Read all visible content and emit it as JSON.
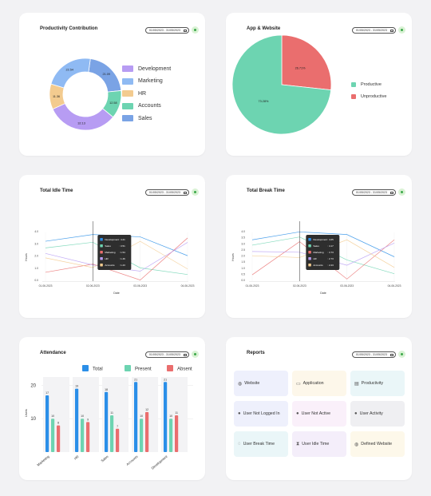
{
  "productivity": {
    "title": "Productivity Contribution",
    "date_range": "01/05/2023 - 31/05/2023",
    "legend": [
      {
        "label": "Development",
        "color": "#b79cf3"
      },
      {
        "label": "Marketing",
        "color": "#8fbaf3"
      },
      {
        "label": "HR",
        "color": "#f3cb8f"
      },
      {
        "label": "Accounts",
        "color": "#6dd4b1"
      },
      {
        "label": "Sales",
        "color": "#7aa3e5"
      }
    ]
  },
  "app_website": {
    "title": "App & Website",
    "date_range": "01/05/2023 - 31/05/2023",
    "legend": [
      {
        "label": "Productive",
        "color": "#6dd4b1"
      },
      {
        "label": "Unproductive",
        "color": "#ea6e6e"
      }
    ]
  },
  "idle": {
    "title": "Total Idle Time",
    "date_range": "01/05/2023 - 31/05/2023",
    "tooltip": [
      {
        "label": "Development",
        "value": ": 4.21",
        "color": "#2b8fe8"
      },
      {
        "label": "Sales",
        "value": ": 3.51",
        "color": "#6dd4b1"
      },
      {
        "label": "Marketing",
        "value": ": 1.54",
        "color": "#ea6e6e"
      },
      {
        "label": "HR",
        "value": ": 1.46",
        "color": "#b79cf3"
      },
      {
        "label": "Accounts",
        "value": ": 1.23",
        "color": "#f3cb8f"
      }
    ]
  },
  "break": {
    "title": "Total Break Time",
    "date_range": "01/05/2023 - 31/05/2023",
    "tooltip": [
      {
        "label": "Development",
        "value": ": 4.65",
        "color": "#2b8fe8"
      },
      {
        "label": "Sales",
        "value": ": 4.17",
        "color": "#6dd4b1"
      },
      {
        "label": "Marketing",
        "value": ": 3.73",
        "color": "#ea6e6e"
      },
      {
        "label": "HR",
        "value": ": 2.73",
        "color": "#b79cf3"
      },
      {
        "label": "Accounts",
        "value": ": 2.23",
        "color": "#f3cb8f"
      }
    ]
  },
  "attendance": {
    "title": "Attendance",
    "date_range": "01/05/2023 - 31/05/2023"
  },
  "reports": {
    "title": "Reports",
    "date_range": "01/05/2023 - 31/05/2023",
    "tiles": [
      {
        "label": "Website",
        "icon": "globe-icon",
        "glyph": "◍",
        "bg": "#eef0fc"
      },
      {
        "label": "Application",
        "icon": "monitor-icon",
        "glyph": "▭",
        "bg": "#fdf7ea"
      },
      {
        "label": "Productivity",
        "icon": "chart-icon",
        "glyph": "▤",
        "bg": "#eaf6f8"
      },
      {
        "label": "User Not Logged In",
        "icon": "user-icon",
        "glyph": "●",
        "bg": "#eef0fc"
      },
      {
        "label": "User Not Active",
        "icon": "user-icon",
        "glyph": "●",
        "bg": "#faf0fa"
      },
      {
        "label": "User Activity",
        "icon": "user-icon",
        "glyph": "●",
        "bg": "#efeff2"
      },
      {
        "label": "User Break Time",
        "icon": "cup-icon",
        "glyph": "◌",
        "bg": "#eaf6f8"
      },
      {
        "label": "User Idle Time",
        "icon": "hourglass-icon",
        "glyph": "⧗",
        "bg": "#f4eefa"
      },
      {
        "label": "Defined Website",
        "icon": "globe-icon",
        "glyph": "◍",
        "bg": "#fdf8ea"
      }
    ]
  },
  "chart_data": [
    {
      "type": "pie",
      "title": "Productivity Contribution",
      "donut": true,
      "slices": [
        {
          "label": "Sales",
          "value": 21.09,
          "color": "#7aa3e5"
        },
        {
          "label": "Accounts",
          "value": 12.58,
          "color": "#6dd4b1"
        },
        {
          "label": "Development",
          "value": 32.13,
          "color": "#b79cf3"
        },
        {
          "label": "HR",
          "value": 11.36,
          "color": "#f3cb8f"
        },
        {
          "label": "Marketing",
          "value": 22.54,
          "color": "#8fbaf3"
        }
      ]
    },
    {
      "type": "pie",
      "title": "App & Website",
      "slices": [
        {
          "label": "Unproductive",
          "value": 26.71,
          "color": "#ea6e6e",
          "display": "26.71%"
        },
        {
          "label": "Productive",
          "value": 73.28,
          "color": "#6dd4b1",
          "display": "73.28%"
        }
      ]
    },
    {
      "type": "line",
      "title": "Total Idle Time",
      "xlabel": "Date",
      "ylabel": "Hours",
      "x": [
        "01-06-2023",
        "02-06-2023",
        "03-06-2023",
        "04-06-2023"
      ],
      "yticks": [
        "0.0",
        "1.0",
        "2.0",
        "3.0",
        "4.0"
      ],
      "ylim": [
        0,
        4.4
      ],
      "series": [
        {
          "name": "Development",
          "color": "#2b8fe8",
          "values": [
            3.6,
            4.21,
            4.0,
            2.3
          ]
        },
        {
          "name": "Sales",
          "color": "#6dd4b1",
          "values": [
            3.0,
            3.51,
            1.2,
            0.6
          ]
        },
        {
          "name": "Marketing",
          "color": "#ea6e6e",
          "values": [
            0.8,
            1.54,
            0.1,
            3.9
          ]
        },
        {
          "name": "HR",
          "color": "#b79cf3",
          "values": [
            2.5,
            1.46,
            0.9,
            3.5
          ]
        },
        {
          "name": "Accounts",
          "color": "#f3cb8f",
          "values": [
            2.1,
            1.23,
            3.6,
            1.1
          ]
        }
      ]
    },
    {
      "type": "line",
      "title": "Total Break Time",
      "xlabel": "Date",
      "ylabel": "Hours",
      "x": [
        "01-06-2023",
        "02-06-2023",
        "03-06-2023",
        "04-06-2023"
      ],
      "yticks": [
        "0.0",
        "0.5",
        "1.0",
        "1.5",
        "2.0",
        "2.5",
        "3.0",
        "3.5",
        "4.0"
      ],
      "ylim": [
        0,
        4.6
      ],
      "series": [
        {
          "name": "Development",
          "color": "#2b8fe8",
          "values": [
            3.9,
            4.65,
            4.4,
            2.3
          ]
        },
        {
          "name": "Sales",
          "color": "#6dd4b1",
          "values": [
            3.4,
            4.17,
            2.0,
            0.7
          ]
        },
        {
          "name": "Marketing",
          "color": "#ea6e6e",
          "values": [
            0.6,
            3.73,
            0.2,
            3.9
          ]
        },
        {
          "name": "HR",
          "color": "#b79cf3",
          "values": [
            2.8,
            2.73,
            1.5,
            3.6
          ]
        },
        {
          "name": "Accounts",
          "color": "#f3cb8f",
          "values": [
            2.4,
            2.23,
            3.9,
            1.3
          ]
        }
      ]
    },
    {
      "type": "bar",
      "title": "Attendance",
      "ylabel": "Users",
      "categories": [
        "Marketing",
        "HR",
        "Sales",
        "Accounts",
        "Development"
      ],
      "yticks": [
        10,
        20
      ],
      "ylim": [
        0,
        22.5
      ],
      "series": [
        {
          "name": "Total",
          "color": "#2b8fe8",
          "values": [
            17,
            19,
            18,
            21,
            21
          ]
        },
        {
          "name": "Present",
          "color": "#6dd4b1",
          "values": [
            10,
            10,
            11,
            10,
            10
          ]
        },
        {
          "name": "Absent",
          "color": "#ea6e6e",
          "values": [
            8,
            9,
            7,
            12,
            11
          ]
        }
      ]
    }
  ]
}
